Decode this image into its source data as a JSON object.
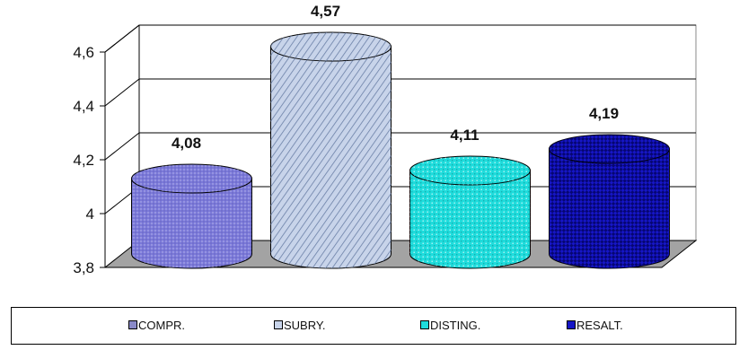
{
  "chart_data": {
    "type": "bar",
    "categories": [
      "COMPR.",
      "SUBRY.",
      "DISTING.",
      "RESALT."
    ],
    "values": [
      4.08,
      4.57,
      4.11,
      4.19
    ],
    "data_labels": [
      "4,08",
      "4,57",
      "4,11",
      "4,19"
    ],
    "ylim": [
      3.8,
      4.6
    ],
    "yticks": [
      3.8,
      4.0,
      4.2,
      4.4,
      4.6
    ],
    "ytick_labels": [
      "3,8",
      "4",
      "4,2",
      "4,4",
      "4,6"
    ],
    "grid": true,
    "style": "3d-cylinder",
    "legend_position": "bottom",
    "series_colors": [
      "#7b79d9",
      "#c8d4ea",
      "#1fdcdc",
      "#1616c6"
    ]
  },
  "legend": {
    "items": [
      {
        "label": "COMPR.",
        "color": "#8a8ac8"
      },
      {
        "label": "SUBRY.",
        "color": "#c8d4ea"
      },
      {
        "label": "DISTING.",
        "color": "#1fdcdc"
      },
      {
        "label": "RESALT.",
        "color": "#1616c6"
      }
    ]
  }
}
